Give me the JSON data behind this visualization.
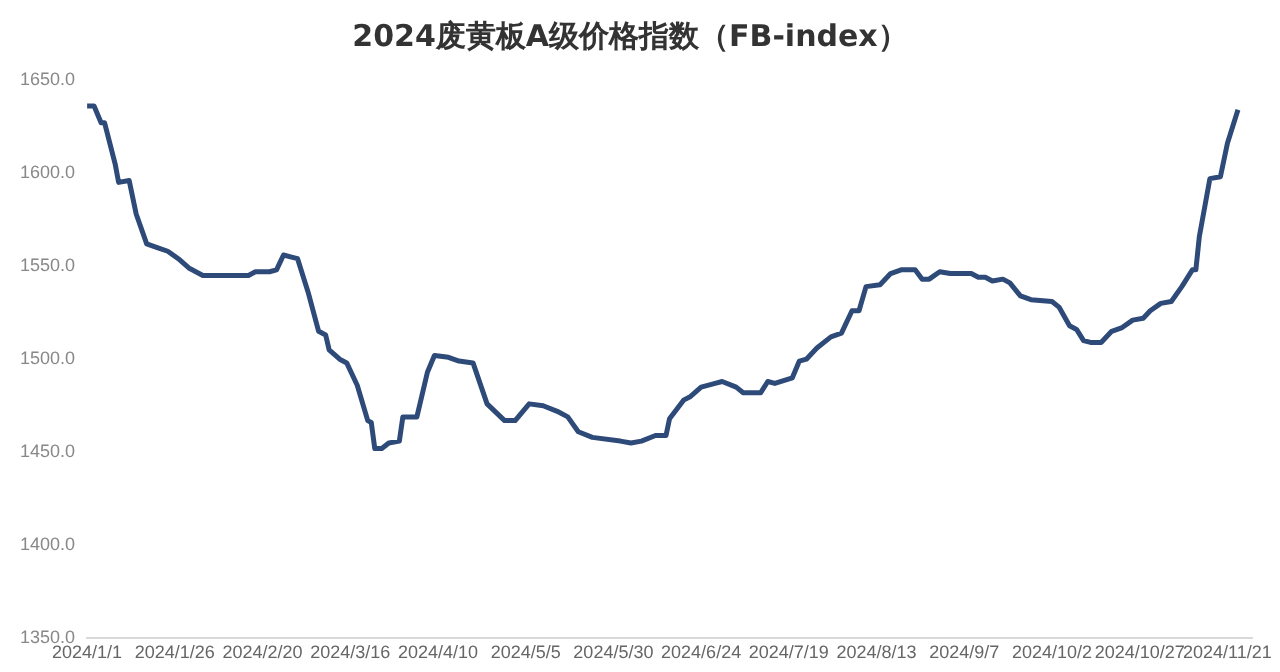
{
  "chart_data": {
    "type": "line",
    "title": "2024废黄板A级价格指数（FB-index）",
    "x": [
      "2024-01-01",
      "2024-01-03",
      "2024-01-05",
      "2024-01-06",
      "2024-01-09",
      "2024-01-10",
      "2024-01-13",
      "2024-01-15",
      "2024-01-18",
      "2024-01-21",
      "2024-01-24",
      "2024-01-27",
      "2024-01-30",
      "2024-02-03",
      "2024-02-16",
      "2024-02-18",
      "2024-02-22",
      "2024-02-24",
      "2024-02-26",
      "2024-02-28",
      "2024-03-01",
      "2024-03-04",
      "2024-03-07",
      "2024-03-09",
      "2024-03-10",
      "2024-03-13",
      "2024-03-15",
      "2024-03-18",
      "2024-03-21",
      "2024-03-22",
      "2024-03-23",
      "2024-03-25",
      "2024-03-27",
      "2024-03-30",
      "2024-03-31",
      "2024-04-04",
      "2024-04-07",
      "2024-04-09",
      "2024-04-13",
      "2024-04-16",
      "2024-04-20",
      "2024-04-24",
      "2024-04-29",
      "2024-05-02",
      "2024-05-06",
      "2024-05-10",
      "2024-05-14",
      "2024-05-17",
      "2024-05-20",
      "2024-05-24",
      "2024-06-01",
      "2024-06-04",
      "2024-06-07",
      "2024-06-11",
      "2024-06-14",
      "2024-06-15",
      "2024-06-19",
      "2024-06-21",
      "2024-06-24",
      "2024-06-28",
      "2024-06-30",
      "2024-07-04",
      "2024-07-06",
      "2024-07-11",
      "2024-07-13",
      "2024-07-15",
      "2024-07-20",
      "2024-07-22",
      "2024-07-24",
      "2024-07-27",
      "2024-07-31",
      "2024-08-03",
      "2024-08-06",
      "2024-08-08",
      "2024-08-10",
      "2024-08-14",
      "2024-08-17",
      "2024-08-20",
      "2024-08-24",
      "2024-08-26",
      "2024-08-28",
      "2024-08-31",
      "2024-09-03",
      "2024-09-09",
      "2024-09-11",
      "2024-09-13",
      "2024-09-15",
      "2024-09-18",
      "2024-09-20",
      "2024-09-23",
      "2024-09-26",
      "2024-10-02",
      "2024-10-04",
      "2024-10-07",
      "2024-10-09",
      "2024-10-11",
      "2024-10-13",
      "2024-10-16",
      "2024-10-19",
      "2024-10-22",
      "2024-10-25",
      "2024-10-28",
      "2024-10-30",
      "2024-11-02",
      "2024-11-05",
      "2024-11-08",
      "2024-11-11",
      "2024-11-12",
      "2024-11-13",
      "2024-11-16",
      "2024-11-19",
      "2024-11-21",
      "2024-11-24"
    ],
    "series": [
      {
        "color": "#2e4a78",
        "values": [
          1636,
          1636,
          1627,
          1627,
          1605,
          1595,
          1596,
          1578,
          1562,
          1560,
          1558,
          1554,
          1549,
          1545,
          1545,
          1547,
          1547,
          1548,
          1556,
          1555,
          1554,
          1536,
          1515,
          1513,
          1505,
          1500,
          1498,
          1486,
          1467,
          1466,
          1452,
          1452,
          1455,
          1456,
          1469,
          1469,
          1493,
          1502,
          1501,
          1499,
          1498,
          1476,
          1467,
          1467,
          1476,
          1475,
          1472,
          1469,
          1461,
          1458,
          1456,
          1455,
          1456,
          1459,
          1459,
          1468,
          1478,
          1480,
          1485,
          1487,
          1488,
          1485,
          1482,
          1482,
          1488,
          1487,
          1490,
          1499,
          1500,
          1506,
          1512,
          1514,
          1526,
          1526,
          1539,
          1540,
          1546,
          1548,
          1548,
          1543,
          1543,
          1547,
          1546,
          1546,
          1544,
          1544,
          1542,
          1543,
          1541,
          1534,
          1532,
          1531,
          1528,
          1518,
          1516,
          1510,
          1509,
          1509,
          1515,
          1517,
          1521,
          1522,
          1526,
          1530,
          1531,
          1539,
          1548,
          1548,
          1566,
          1597,
          1598,
          1616,
          1634
        ]
      }
    ],
    "xlim": [
      "2024-01-01",
      "2024-11-28"
    ],
    "xticks": [
      {
        "value": "2024-01-01",
        "label": "2024/1/1"
      },
      {
        "value": "2024-01-26",
        "label": "2024/1/26"
      },
      {
        "value": "2024-02-20",
        "label": "2024/2/20"
      },
      {
        "value": "2024-03-16",
        "label": "2024/3/16"
      },
      {
        "value": "2024-04-10",
        "label": "2024/4/10"
      },
      {
        "value": "2024-05-05",
        "label": "2024/5/5"
      },
      {
        "value": "2024-05-30",
        "label": "2024/5/30"
      },
      {
        "value": "2024-06-24",
        "label": "2024/6/24"
      },
      {
        "value": "2024-07-19",
        "label": "2024/7/19"
      },
      {
        "value": "2024-08-13",
        "label": "2024/8/13"
      },
      {
        "value": "2024-09-07",
        "label": "2024/9/7"
      },
      {
        "value": "2024-10-02",
        "label": "2024/10/2"
      },
      {
        "value": "2024-10-27",
        "label": "2024/10/27"
      },
      {
        "value": "2024-11-21",
        "label": "2024/11/21"
      }
    ],
    "ylim": [
      1350,
      1650
    ],
    "yticks": [
      {
        "value": 1350,
        "label": "1350.0"
      },
      {
        "value": 1400,
        "label": "1400.0"
      },
      {
        "value": 1450,
        "label": "1450.0"
      },
      {
        "value": 1500,
        "label": "1500.0"
      },
      {
        "value": 1550,
        "label": "1550.0"
      },
      {
        "value": 1600,
        "label": "1600.0"
      },
      {
        "value": 1650,
        "label": "1650.0"
      }
    ],
    "grid": false,
    "legend": false,
    "marker": "none",
    "line_style": "solid"
  }
}
